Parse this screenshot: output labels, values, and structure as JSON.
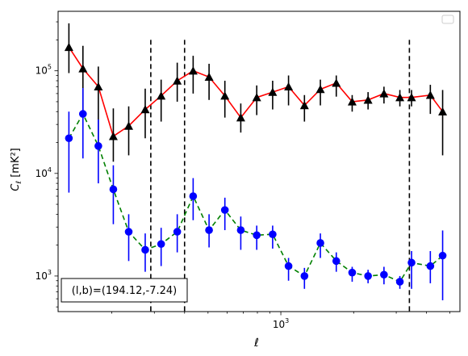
{
  "chart_data": {
    "type": "scatter",
    "xscale": "log",
    "yscale": "log",
    "xlabel": "ℓ",
    "ylabel": "C",
    "ylabel_sub": "ℓ",
    "ylabel_unit": "[mK²]",
    "xlim": [
      120,
      5500
    ],
    "ylim": [
      450,
      380000
    ],
    "x_major_ticks": [
      {
        "value": 1000,
        "base": "10",
        "exp": "3"
      }
    ],
    "y_major_ticks": [
      {
        "value": 1000,
        "base": "10",
        "exp": "3"
      },
      {
        "value": 10000,
        "base": "10",
        "exp": "4"
      },
      {
        "value": 100000,
        "base": "10",
        "exp": "5"
      }
    ],
    "annotation": "(l,b)=(194.12,-7.24)",
    "vlines": [
      290,
      400,
      3400
    ],
    "vline_ymax": 200000,
    "legend": "top-right (empty)",
    "series": [
      {
        "name": "",
        "color": "#ff0000",
        "marker": "triangle",
        "marker_color": "#000000",
        "errorbar_color": "#000000",
        "line_style": "solid",
        "x": [
          133,
          152,
          176,
          203,
          235,
          275,
          320,
          373,
          434,
          505,
          587,
          683,
          795,
          925,
          1076,
          1252,
          1457,
          1695,
          1972,
          2294,
          2669,
          3105,
          3470,
          4150,
          4665
        ],
        "y": [
          170000,
          105000,
          70000,
          23000,
          29000,
          42000,
          57000,
          80000,
          100000,
          87000,
          57000,
          35000,
          55000,
          62000,
          70000,
          46000,
          66000,
          76000,
          50000,
          52000,
          60000,
          55000,
          55000,
          58000,
          40000
        ],
        "err_low": [
          75000,
          70000,
          50000,
          10000,
          14000,
          20000,
          25000,
          30000,
          40000,
          35000,
          22000,
          10000,
          18000,
          20000,
          24000,
          14000,
          20000,
          20000,
          10000,
          10000,
          12000,
          10000,
          10000,
          20000,
          25000
        ],
        "err_high": [
          120000,
          70000,
          40000,
          20000,
          16000,
          25000,
          25000,
          40000,
          40000,
          30000,
          23000,
          13000,
          17000,
          18000,
          20000,
          12000,
          16000,
          14000,
          8000,
          10000,
          10000,
          10000,
          10000,
          15000,
          25000
        ]
      },
      {
        "name": "",
        "color": "#008000",
        "marker": "circle",
        "marker_color": "#0000ff",
        "errorbar_color": "#0000ff",
        "line_style": "dashed",
        "x": [
          133,
          152,
          176,
          203,
          235,
          275,
          320,
          373,
          434,
          505,
          587,
          683,
          795,
          925,
          1076,
          1252,
          1457,
          1695,
          1972,
          2294,
          2669,
          3105,
          3470,
          4150,
          4665
        ],
        "y": [
          22000,
          38000,
          18500,
          7000,
          2700,
          1800,
          2050,
          2700,
          6000,
          2800,
          4400,
          2800,
          2500,
          2550,
          1250,
          1000,
          2100,
          1400,
          1080,
          1000,
          1030,
          880,
          1350,
          1250,
          1580
        ],
        "err_low": [
          15500,
          24000,
          10500,
          3800,
          1300,
          700,
          800,
          1000,
          2500,
          900,
          1600,
          1000,
          700,
          700,
          350,
          250,
          600,
          300,
          200,
          150,
          200,
          130,
          600,
          400,
          1000
        ],
        "err_high": [
          18000,
          30000,
          15000,
          5000,
          1300,
          800,
          900,
          1300,
          3000,
          1200,
          1400,
          1000,
          600,
          550,
          250,
          200,
          500,
          300,
          150,
          150,
          200,
          120,
          400,
          500,
          1200
        ]
      }
    ]
  }
}
